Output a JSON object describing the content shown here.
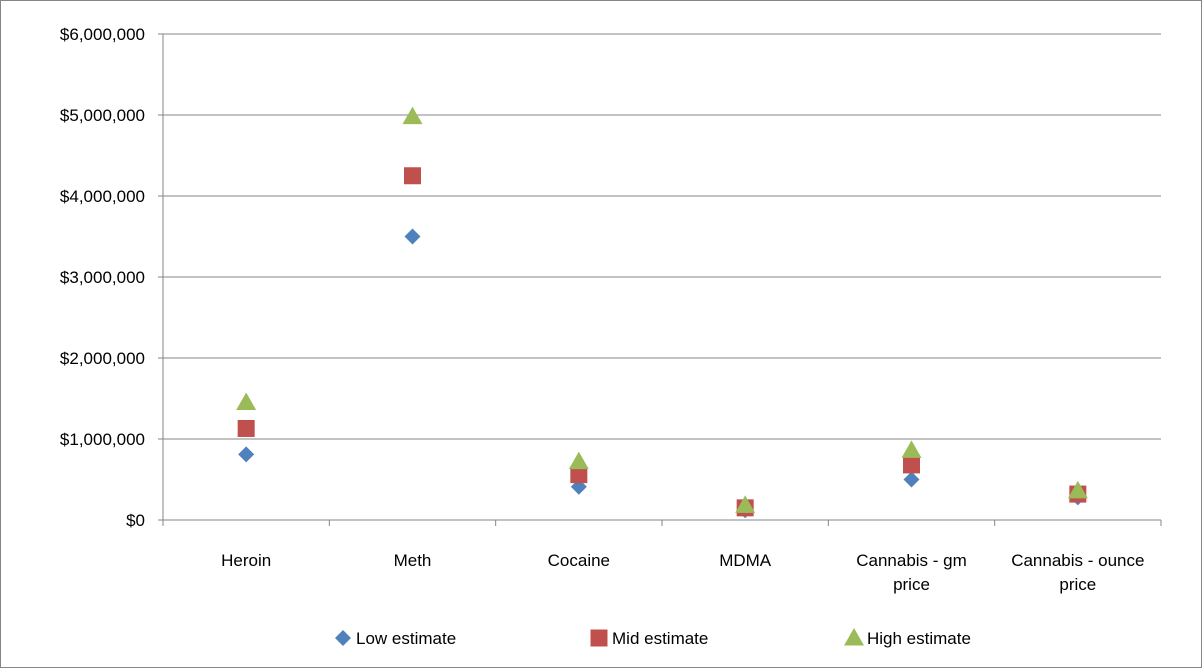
{
  "chart_data": {
    "type": "scatter",
    "title": "",
    "xlabel": "",
    "ylabel": "",
    "categories": [
      [
        "Heroin"
      ],
      [
        "Meth"
      ],
      [
        "Cocaine"
      ],
      [
        "MDMA"
      ],
      [
        "Cannabis - gm",
        "price"
      ],
      [
        "Cannabis - ounce",
        "price"
      ]
    ],
    "series": [
      {
        "name": "Low estimate",
        "marker": "diamond",
        "color": "#4F81BD",
        "values": [
          810000,
          3500000,
          410000,
          120000,
          500000,
          280000
        ]
      },
      {
        "name": "Mid estimate",
        "marker": "square",
        "color": "#C0504D",
        "values": [
          1130000,
          4250000,
          560000,
          150000,
          680000,
          320000
        ]
      },
      {
        "name": "High estimate",
        "marker": "triangle",
        "color": "#9BBB59",
        "values": [
          1450000,
          4980000,
          720000,
          180000,
          860000,
          360000
        ]
      }
    ],
    "ylim": [
      0,
      6000000
    ],
    "y_ticks": [
      "$0",
      "$1,000,000",
      "$2,000,000",
      "$3,000,000",
      "$4,000,000",
      "$5,000,000",
      "$6,000,000"
    ],
    "grid": true,
    "legend_position": "bottom"
  }
}
